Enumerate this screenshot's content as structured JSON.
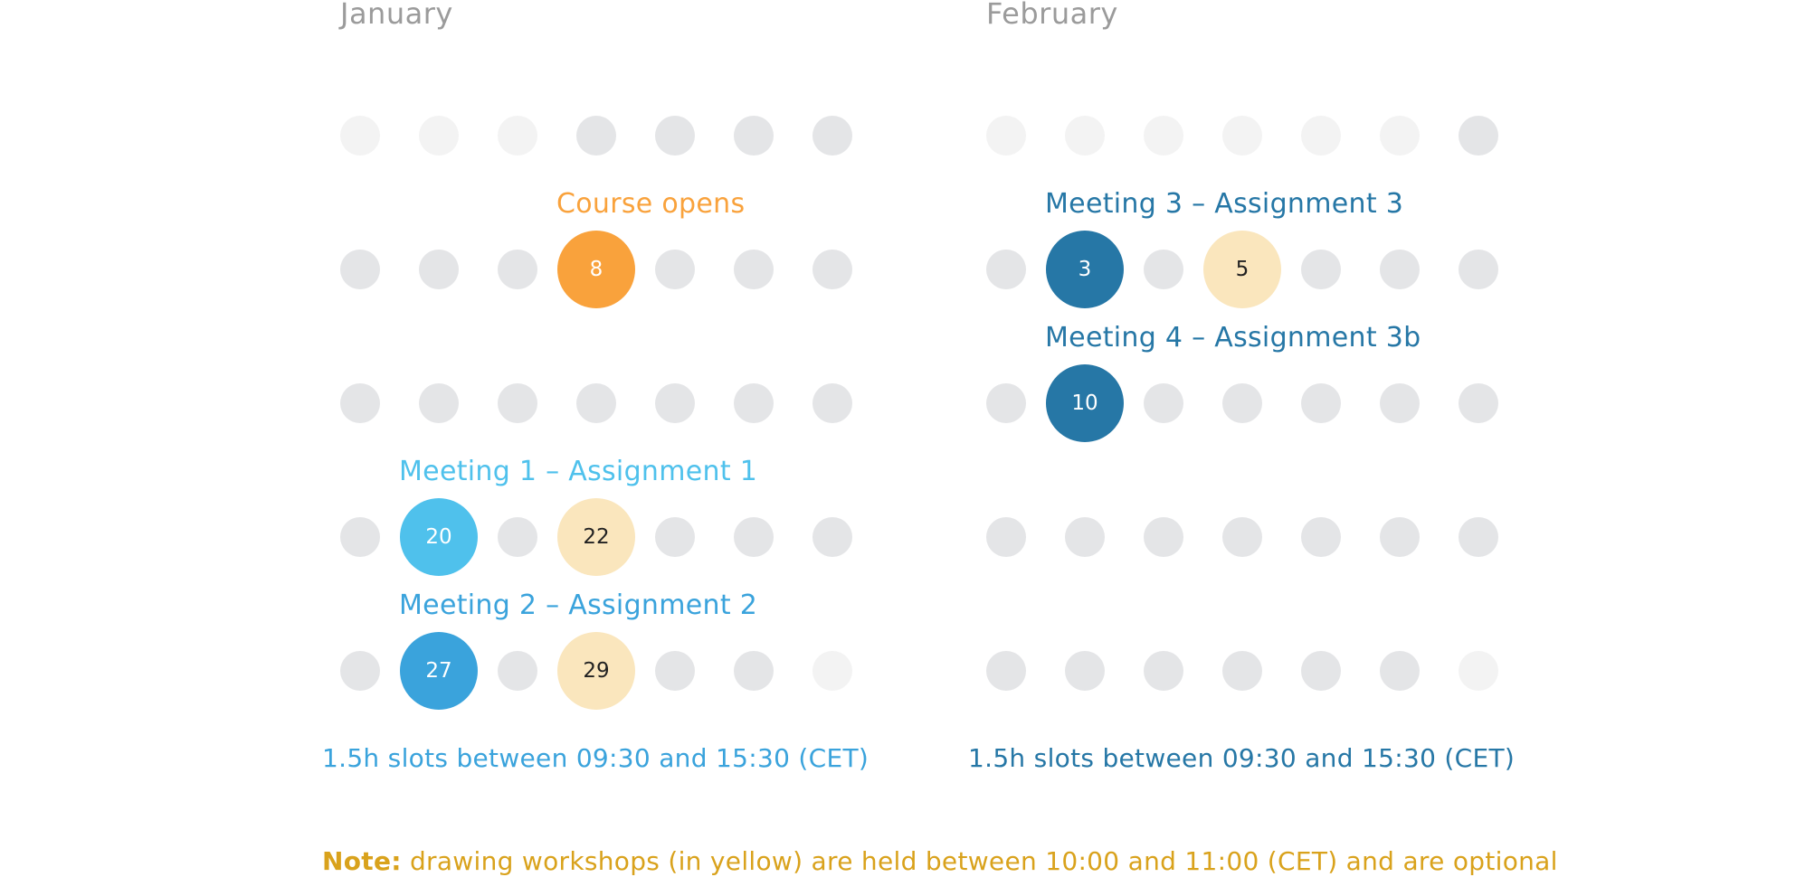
{
  "months": [
    {
      "title": "January",
      "slots_text": "1.5h slots between 09:30 and 15:30 (CET)",
      "slots_color": "#3aa3dc",
      "rows": [
        [
          "faint",
          "faint",
          "faint",
          "dot",
          "dot",
          "dot",
          "dot"
        ],
        [
          "dot",
          "dot",
          "dot",
          "day",
          "dot",
          "dot",
          "dot"
        ],
        [
          "dot",
          "dot",
          "dot",
          "dot",
          "dot",
          "dot",
          "dot"
        ],
        [
          "dot",
          "day",
          "dot",
          "day",
          "dot",
          "dot",
          "dot"
        ],
        [
          "dot",
          "day",
          "dot",
          "day",
          "dot",
          "dot",
          "faint"
        ]
      ],
      "days": [
        {
          "label": "8",
          "row": 1,
          "col": 3,
          "color": "#f9a23c",
          "text_color": "#ffffff"
        },
        {
          "label": "20",
          "row": 3,
          "col": 1,
          "color": "#4fc1ec",
          "text_color": "#ffffff"
        },
        {
          "label": "22",
          "row": 3,
          "col": 3,
          "color": "#fae6bd",
          "text_color": "#222222"
        },
        {
          "label": "27",
          "row": 4,
          "col": 1,
          "color": "#3aa3dc",
          "text_color": "#ffffff"
        },
        {
          "label": "29",
          "row": 4,
          "col": 3,
          "color": "#fae6bd",
          "text_color": "#222222"
        }
      ],
      "events": [
        {
          "label": "Course opens",
          "row": 1,
          "col": 3,
          "color": "#f9a23c"
        },
        {
          "label": "Meeting 1 – Assignment 1",
          "row": 3,
          "col": 1,
          "color": "#4fc1ec"
        },
        {
          "label": "Meeting 2 – Assignment 2",
          "row": 4,
          "col": 1,
          "color": "#3aa3dc"
        }
      ]
    },
    {
      "title": "February",
      "slots_text": "1.5h slots between 09:30 and 15:30 (CET)",
      "slots_color": "#2677a6",
      "rows": [
        [
          "faint",
          "faint",
          "faint",
          "faint",
          "faint",
          "faint",
          "dot"
        ],
        [
          "dot",
          "day",
          "dot",
          "day",
          "dot",
          "dot",
          "dot"
        ],
        [
          "dot",
          "day",
          "dot",
          "dot",
          "dot",
          "dot",
          "dot"
        ],
        [
          "dot",
          "dot",
          "dot",
          "dot",
          "dot",
          "dot",
          "dot"
        ],
        [
          "dot",
          "dot",
          "dot",
          "dot",
          "dot",
          "dot",
          "faint"
        ]
      ],
      "days": [
        {
          "label": "3",
          "row": 1,
          "col": 1,
          "color": "#2677a6",
          "text_color": "#ffffff"
        },
        {
          "label": "5",
          "row": 1,
          "col": 3,
          "color": "#fae6bd",
          "text_color": "#222222"
        },
        {
          "label": "10",
          "row": 2,
          "col": 1,
          "color": "#2677a6",
          "text_color": "#ffffff"
        }
      ],
      "events": [
        {
          "label": "Meeting 3 – Assignment 3",
          "row": 1,
          "col": 1,
          "color": "#2677a6"
        },
        {
          "label": "Meeting 4 – Assignment 3b",
          "row": 2,
          "col": 1,
          "color": "#2677a6"
        }
      ]
    }
  ],
  "note": {
    "prefix": "Note:",
    "text": " drawing workshops (in yellow) are held between 10:00 and 11:00 (CET) and are optional",
    "color": "#d9a21c"
  }
}
